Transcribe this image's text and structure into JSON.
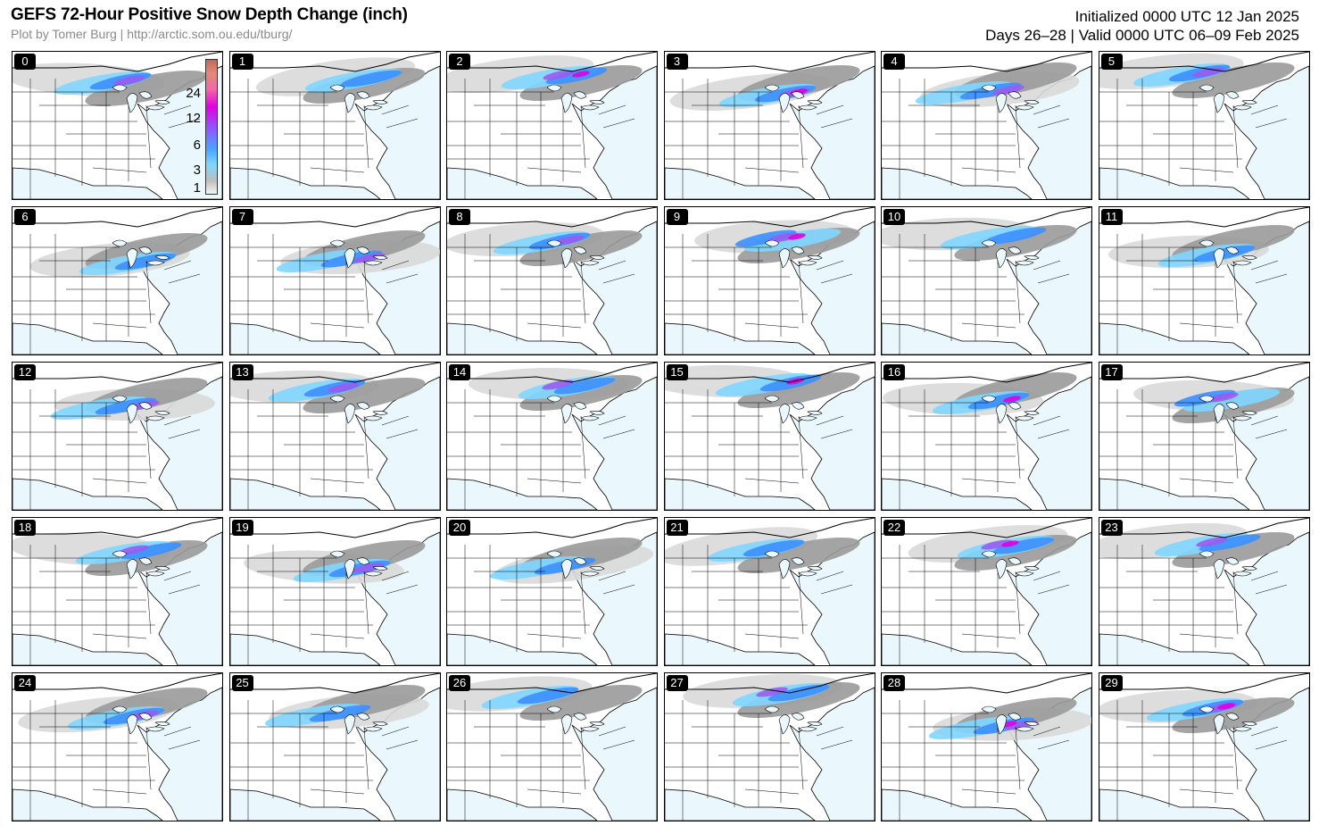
{
  "header": {
    "title": "GEFS 72-Hour Positive Snow Depth Change (inch)",
    "subtitle": "Plot by Tomer Burg | http://arctic.som.ou.edu/tburg/",
    "init": "Initialized 0000 UTC 12 Jan 2025",
    "valid": "Days 26–28 | Valid 0000 UTC 06–09 Feb 2025"
  },
  "colorbar": {
    "labels": [
      "24",
      "12",
      "6",
      "3",
      "1"
    ]
  },
  "colors": {
    "ocean": "#eaf8fd",
    "land": "#ffffff",
    "snow_light": "#d9d9d9",
    "snow_gray": "#9a9a9a",
    "snow_cyan": "#7fd6ff",
    "snow_blue": "#3c8fff",
    "snow_purple": "#9a5cf0",
    "snow_magenta": "#e000e0"
  },
  "members": [
    "0",
    "1",
    "2",
    "3",
    "4",
    "5",
    "6",
    "7",
    "8",
    "9",
    "10",
    "11",
    "12",
    "13",
    "14",
    "15",
    "16",
    "17",
    "18",
    "19",
    "20",
    "21",
    "22",
    "23",
    "24",
    "25",
    "26",
    "27",
    "28",
    "29"
  ]
}
